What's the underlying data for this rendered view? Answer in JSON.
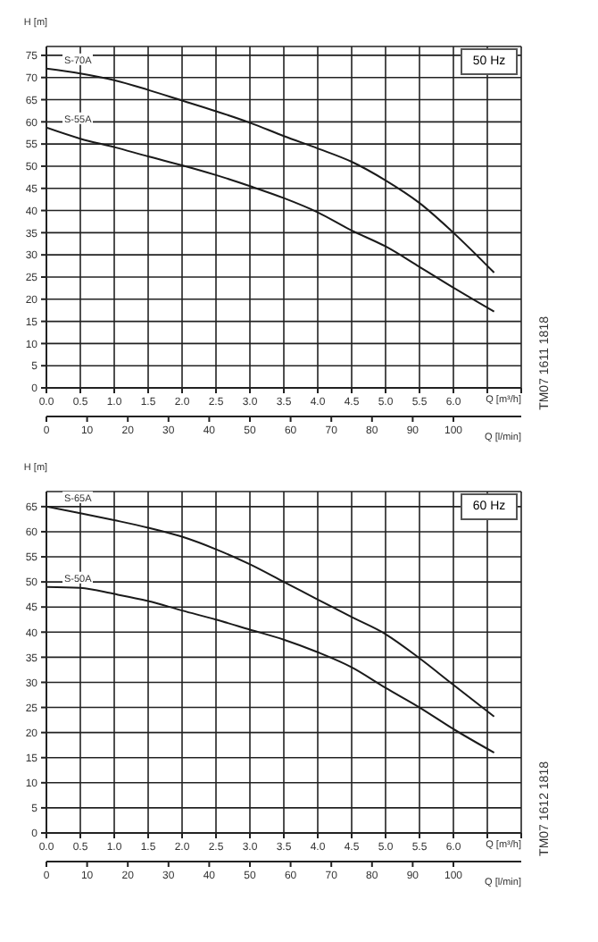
{
  "chart_data": [
    {
      "type": "line",
      "title": "50 Hz",
      "ylabel": "H [m]",
      "xlabel": "Q [m³/h]",
      "x2label": "Q [l/min]",
      "annotations": [
        "TM07 1611 1818"
      ],
      "grid": true,
      "line_style": "solid",
      "x": [
        0,
        0.5,
        1.0,
        1.5,
        2.0,
        2.5,
        3.0,
        3.5,
        4.0,
        4.5,
        5.0,
        5.5,
        6.0,
        6.6
      ],
      "series": [
        {
          "name": "S-70A",
          "color": "#1a1a1a",
          "values": [
            72,
            70.9,
            69.4,
            67.2,
            64.8,
            62.4,
            59.8,
            56.8,
            54,
            51,
            46.8,
            41.7,
            35,
            26
          ]
        },
        {
          "name": "S-55A",
          "color": "#1a1a1a",
          "values": [
            58.7,
            56.2,
            54.3,
            52.2,
            50.2,
            48,
            45.5,
            42.8,
            39.6,
            35.5,
            31.9,
            27.3,
            22.6,
            17.2
          ]
        }
      ],
      "xlim": [
        0,
        7.0
      ],
      "xticks": [
        {
          "value": 0,
          "label": "0.0"
        },
        0.5,
        {
          "value": 1,
          "label": "1.0"
        },
        1.5,
        {
          "value": 2,
          "label": "2.0"
        },
        2.5,
        {
          "value": 3,
          "label": "3.0"
        },
        3.5,
        {
          "value": 4,
          "label": "4.0"
        },
        4.5,
        {
          "value": 5,
          "label": "5.0"
        },
        5.5,
        {
          "value": 6,
          "label": "6.0"
        },
        {
          "value": 6.5,
          "label": null
        },
        {
          "value": 7,
          "label": null
        }
      ],
      "ylim": [
        0,
        77
      ],
      "yticks": [
        0,
        5,
        10,
        15,
        20,
        25,
        30,
        35,
        40,
        45,
        50,
        55,
        60,
        65,
        70,
        75
      ],
      "x2lim": [
        0,
        116.67
      ],
      "x2ticks": [
        0,
        10,
        20,
        30,
        40,
        50,
        60,
        70,
        80,
        90,
        100
      ]
    },
    {
      "type": "line",
      "title": "60 Hz",
      "ylabel": "H [m]",
      "xlabel": "Q [m³/h]",
      "x2label": "Q [l/min]",
      "annotations": [
        "TM07 1612 1818"
      ],
      "grid": true,
      "line_style": "solid",
      "x": [
        0,
        0.5,
        1.0,
        1.5,
        2.0,
        2.5,
        3.0,
        3.5,
        4.0,
        4.5,
        5.0,
        5.5,
        6.0,
        6.6
      ],
      "series": [
        {
          "name": "S-65A",
          "color": "#1a1a1a",
          "values": [
            65,
            63.7,
            62.3,
            60.8,
            59,
            56.5,
            53.5,
            50,
            46.5,
            43,
            39.6,
            34.8,
            29.5,
            23.2
          ]
        },
        {
          "name": "S-50A",
          "color": "#1a1a1a",
          "values": [
            49,
            48.8,
            47.6,
            46.2,
            44.3,
            42.5,
            40.5,
            38.5,
            36,
            33,
            28.9,
            25,
            20.7,
            16
          ]
        }
      ],
      "xlim": [
        0,
        7.0
      ],
      "xticks": [
        {
          "value": 0,
          "label": "0.0"
        },
        0.5,
        {
          "value": 1,
          "label": "1.0"
        },
        1.5,
        {
          "value": 2,
          "label": "2.0"
        },
        2.5,
        {
          "value": 3,
          "label": "3.0"
        },
        3.5,
        {
          "value": 4,
          "label": "4.0"
        },
        4.5,
        {
          "value": 5,
          "label": "5.0"
        },
        5.5,
        {
          "value": 6,
          "label": "6.0"
        },
        {
          "value": 6.5,
          "label": null
        },
        {
          "value": 7,
          "label": null
        }
      ],
      "ylim": [
        0,
        68
      ],
      "yticks": [
        0,
        5,
        10,
        15,
        20,
        25,
        30,
        35,
        40,
        45,
        50,
        55,
        60,
        65
      ],
      "x2lim": [
        0,
        116.67
      ],
      "x2ticks": [
        0,
        10,
        20,
        30,
        40,
        50,
        60,
        70,
        80,
        90,
        100
      ]
    }
  ]
}
